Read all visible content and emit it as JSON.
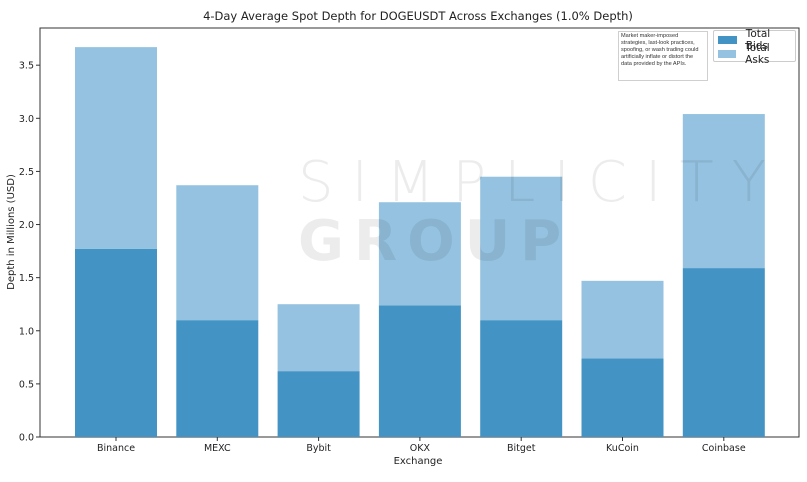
{
  "chart_data": {
    "type": "bar",
    "stacked": true,
    "title": "4-Day Average Spot Depth for DOGEUSDT Across Exchanges (1.0% Depth)",
    "xlabel": "Exchange",
    "ylabel": "Depth in Millions (USD)",
    "categories": [
      "Binance",
      "MEXC",
      "Bybit",
      "OKX",
      "Bitget",
      "KuCoin",
      "Coinbase"
    ],
    "series": [
      {
        "name": "Total Bids",
        "color": "#4394c5",
        "values": [
          1.77,
          1.1,
          0.62,
          1.24,
          1.1,
          0.74,
          1.59
        ]
      },
      {
        "name": "Total Asks",
        "color": "#94c2e0",
        "values": [
          1.9,
          1.27,
          0.63,
          0.97,
          1.35,
          0.73,
          1.45
        ]
      }
    ],
    "ylim": [
      0,
      3.85
    ],
    "yticks": [
      "0.0",
      "0.5",
      "1.0",
      "1.5",
      "2.0",
      "2.5",
      "3.0",
      "3.5"
    ],
    "grid": false,
    "legend_position": "top-right"
  },
  "annotation": {
    "disclaimer": "Market maker-imposed strategies, last-look practices, spoofing, or wash trading could artificially inflate or distort the data provided by the APIs."
  },
  "watermark": {
    "line1": "SIMPLICITY",
    "line2": "GROUP"
  }
}
